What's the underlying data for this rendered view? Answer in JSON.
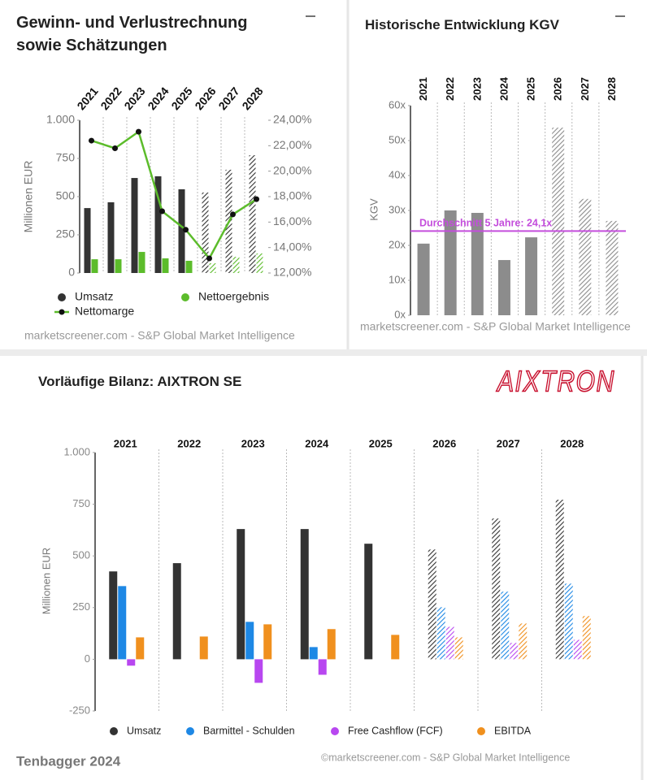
{
  "chart_data": [
    {
      "type": "bar",
      "title": "Gewinn- und Verlustrechnung sowie Schätzungen",
      "categories": [
        "2021",
        "2022",
        "2023",
        "2024",
        "2025",
        "2026",
        "2027",
        "2028"
      ],
      "ylabel": "Millionen EUR",
      "ylim": [
        0,
        1000
      ],
      "yticks": [
        0,
        250,
        500,
        750,
        {
          "value": 1000,
          "label": "1.000"
        }
      ],
      "y2lim": [
        12,
        24
      ],
      "y2ticks": [
        {
          "value": 12,
          "label": "12,00%"
        },
        {
          "value": 14,
          "label": "14,00%"
        },
        {
          "value": 16,
          "label": "16,00%"
        },
        {
          "value": 18,
          "label": "18,00%"
        },
        {
          "value": 20,
          "label": "20,00%"
        },
        {
          "value": 22,
          "label": "22,00%"
        },
        {
          "value": 24,
          "label": "24,00%"
        }
      ],
      "series": [
        {
          "name": "Umsatz",
          "color": "#333333",
          "values": [
            425,
            463,
            622,
            633,
            548,
            527,
            676,
            771
          ],
          "hatched": [
            false,
            false,
            false,
            false,
            false,
            true,
            true,
            true
          ]
        },
        {
          "name": "Nettoergebnis",
          "color": "#5cbc2b",
          "values": [
            90,
            90,
            138,
            96,
            80,
            64,
            106,
            128
          ],
          "hatched": [
            false,
            false,
            false,
            false,
            false,
            true,
            true,
            true
          ]
        },
        {
          "name": "Nettomarge",
          "type": "line",
          "axis": "y2",
          "color": "#5cbc2b",
          "values": [
            22.4,
            21.8,
            23.1,
            16.85,
            15.4,
            13.15,
            16.6,
            17.8
          ]
        }
      ],
      "legend": "bottom",
      "source": "marketscreener.com - S&P Global Market Intelligence"
    },
    {
      "type": "bar",
      "title": "Historische Entwicklung KGV",
      "categories": [
        "2021",
        "2022",
        "2023",
        "2024",
        "2025",
        "2026",
        "2027",
        "2028"
      ],
      "ylabel": "KGV",
      "ylim": [
        0,
        60
      ],
      "yticks": [
        {
          "value": 0,
          "label": "0x"
        },
        {
          "value": 10,
          "label": "10x"
        },
        {
          "value": 20,
          "label": "20x"
        },
        {
          "value": 30,
          "label": "30x"
        },
        {
          "value": 40,
          "label": "40x"
        },
        {
          "value": 50,
          "label": "50x"
        },
        {
          "value": 60,
          "label": "60x"
        }
      ],
      "series": [
        {
          "name": "KGV",
          "color": "#8c8c8c",
          "values": [
            20.5,
            30.0,
            29.3,
            15.8,
            22.3,
            53.7,
            33.3,
            27.0
          ],
          "hatched": [
            false,
            false,
            false,
            false,
            false,
            true,
            true,
            true
          ]
        }
      ],
      "average": {
        "value": 24.1,
        "label": "Durchschnitt 5 Jahre: 24,1x",
        "color": "#c44ddc"
      },
      "source": "marketscreener.com - S&P Global Market Intelligence"
    },
    {
      "type": "bar",
      "title": "Vorläufige Bilanz: AIXTRON SE",
      "logo": "AIXTRON",
      "categories": [
        "2021",
        "2022",
        "2023",
        "2024",
        "2025",
        "2026",
        "2027",
        "2028"
      ],
      "ylabel": "Millionen EUR",
      "ylim": [
        -250,
        1000
      ],
      "yticks": [
        -250,
        0,
        250,
        500,
        750,
        {
          "value": 1000,
          "label": "1.000"
        }
      ],
      "series": [
        {
          "name": "Umsatz",
          "color": "#333333",
          "values": [
            425,
            465,
            630,
            630,
            559,
            531,
            681,
            772
          ],
          "hatched": [
            false,
            false,
            false,
            false,
            false,
            true,
            true,
            true
          ]
        },
        {
          "name": "Barmittel - Schulden",
          "color": "#1e88e5",
          "values": [
            354,
            null,
            181,
            59,
            null,
            252,
            327,
            366
          ],
          "hatched": [
            false,
            false,
            false,
            false,
            false,
            true,
            true,
            true
          ]
        },
        {
          "name": "Free Cashflow (FCF)",
          "color": "#b847f0",
          "values": [
            -31,
            null,
            -114,
            -75,
            null,
            157,
            79,
            94
          ],
          "hatched": [
            false,
            false,
            false,
            false,
            false,
            true,
            true,
            true
          ]
        },
        {
          "name": "EBITDA",
          "color": "#f0901e",
          "values": [
            106,
            110,
            169,
            146,
            118,
            106,
            173,
            209
          ],
          "hatched": [
            false,
            false,
            false,
            false,
            false,
            true,
            true,
            true
          ]
        }
      ],
      "legend": "bottom",
      "source": "©marketscreener.com - S&P Global Market Intelligence",
      "footer": "Tenbagger 2024"
    }
  ]
}
